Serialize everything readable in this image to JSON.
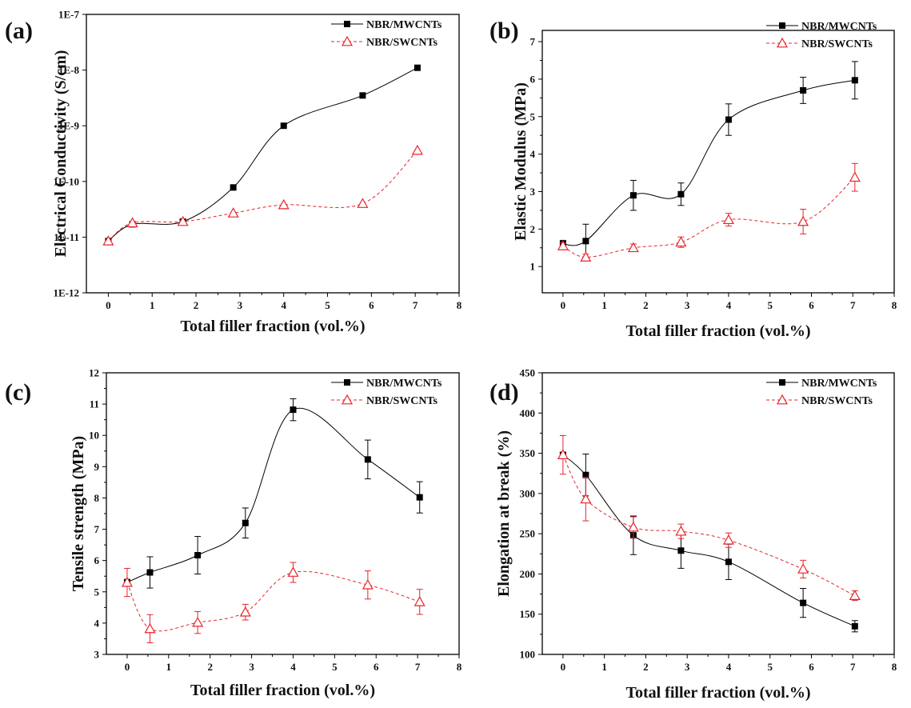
{
  "chart_data": [
    {
      "panel": "(a)",
      "type": "scatter",
      "xlabel": "Total filler fraction (vol.%)",
      "ylabel": "Electrical Conductivity (S/cm)",
      "y_scale": "log",
      "xlim": [
        -0.5,
        8
      ],
      "ylim": [
        1e-12,
        1e-07
      ],
      "x_ticks": [
        "0",
        "1",
        "2",
        "3",
        "4",
        "5",
        "6",
        "7",
        "8"
      ],
      "y_ticks": [
        "1E-12",
        "1E-11",
        "1E-10",
        "1E-9",
        "1E-8",
        "1E-7"
      ],
      "legend": "top-right",
      "series": [
        {
          "name": "NBR/MWCNTs",
          "x": [
            0,
            0.55,
            1.7,
            2.85,
            4.0,
            5.8,
            7.05
          ],
          "y": [
            8.5e-12,
            1.7e-11,
            1.9e-11,
            7.8e-11,
            1e-09,
            3.5e-09,
            1.1e-08
          ],
          "color": "#000000",
          "marker": "square-filled",
          "line": "solid"
        },
        {
          "name": "NBR/SWCNTs",
          "x": [
            0,
            0.55,
            1.7,
            2.85,
            4.0,
            5.8,
            7.05
          ],
          "y": [
            8.5e-12,
            1.8e-11,
            1.9e-11,
            2.7e-11,
            3.8e-11,
            4e-11,
            3.6e-10
          ],
          "color": "#e8242b",
          "marker": "triangle-open",
          "line": "dashed"
        }
      ]
    },
    {
      "panel": "(b)",
      "type": "scatter",
      "xlabel": "Total filler fraction (vol.%)",
      "ylabel": "Elastic Modulus (MPa)",
      "xlim": [
        -0.5,
        8
      ],
      "ylim": [
        0.3,
        7.3
      ],
      "x_ticks": [
        "0",
        "1",
        "2",
        "3",
        "4",
        "5",
        "6",
        "7",
        "8"
      ],
      "y_ticks": [
        "1",
        "2",
        "3",
        "4",
        "5",
        "6",
        "7"
      ],
      "legend": "top-right",
      "series": [
        {
          "name": "NBR/MWCNTs",
          "x": [
            0,
            0.55,
            1.7,
            2.85,
            4.0,
            5.8,
            7.05
          ],
          "y": [
            1.6,
            1.68,
            2.9,
            2.93,
            4.92,
            5.7,
            5.97
          ],
          "err": [
            0.1,
            0.45,
            0.4,
            0.3,
            0.42,
            0.35,
            0.5
          ],
          "color": "#000000",
          "marker": "square-filled",
          "line": "solid"
        },
        {
          "name": "NBR/SWCNTs",
          "x": [
            0,
            0.55,
            1.7,
            2.85,
            4.0,
            5.8,
            7.05
          ],
          "y": [
            1.55,
            1.25,
            1.5,
            1.65,
            2.25,
            2.2,
            3.38
          ],
          "err": [
            0.08,
            0.08,
            0.1,
            0.14,
            0.17,
            0.33,
            0.37
          ],
          "color": "#e8242b",
          "marker": "triangle-open",
          "line": "dashed"
        }
      ]
    },
    {
      "panel": "(c)",
      "type": "scatter",
      "xlabel": "Total filler fraction (vol.%)",
      "ylabel": "Tensile strength (MPa)",
      "xlim": [
        -0.5,
        8
      ],
      "ylim": [
        3,
        12
      ],
      "x_ticks": [
        "0",
        "1",
        "2",
        "3",
        "4",
        "5",
        "6",
        "7",
        "8"
      ],
      "y_ticks": [
        "3",
        "4",
        "5",
        "6",
        "7",
        "8",
        "9",
        "10",
        "11",
        "12"
      ],
      "legend": "top-right",
      "series": [
        {
          "name": "NBR/MWCNTs",
          "x": [
            0,
            0.55,
            1.7,
            2.85,
            4.0,
            5.8,
            7.05
          ],
          "y": [
            5.3,
            5.62,
            6.17,
            7.2,
            10.82,
            9.23,
            8.02
          ],
          "err": [
            0.1,
            0.5,
            0.6,
            0.48,
            0.35,
            0.62,
            0.5
          ],
          "color": "#000000",
          "marker": "square-filled",
          "line": "solid"
        },
        {
          "name": "NBR/SWCNTs",
          "x": [
            0,
            0.55,
            1.7,
            2.85,
            4.0,
            5.8,
            7.05
          ],
          "y": [
            5.3,
            3.82,
            4.02,
            4.35,
            5.62,
            5.22,
            4.68
          ],
          "err": [
            0.45,
            0.45,
            0.35,
            0.25,
            0.32,
            0.45,
            0.4
          ],
          "color": "#e8242b",
          "marker": "triangle-open",
          "line": "dashed"
        }
      ]
    },
    {
      "panel": "(d)",
      "type": "scatter",
      "xlabel": "Total filler fraction (vol.%)",
      "ylabel": "Elongation at break (%)",
      "xlim": [
        -0.5,
        8
      ],
      "ylim": [
        100,
        450
      ],
      "x_ticks": [
        "0",
        "1",
        "2",
        "3",
        "4",
        "5",
        "6",
        "7",
        "8"
      ],
      "y_ticks": [
        "100",
        "150",
        "200",
        "250",
        "300",
        "350",
        "400",
        "450"
      ],
      "legend": "top-right",
      "series": [
        {
          "name": "NBR/MWCNTs",
          "x": [
            0,
            0.55,
            1.7,
            2.85,
            4.0,
            5.8,
            7.05
          ],
          "y": [
            348,
            323,
            248,
            229,
            215,
            164,
            135
          ],
          "err": [
            3,
            26,
            24,
            22,
            22,
            18,
            7
          ],
          "color": "#000000",
          "marker": "square-filled",
          "line": "solid"
        },
        {
          "name": "NBR/SWCNTs",
          "x": [
            0,
            0.55,
            1.7,
            2.85,
            4.0,
            5.8,
            7.05
          ],
          "y": [
            348,
            293,
            258,
            253,
            242,
            206,
            173
          ],
          "err": [
            24,
            27,
            13,
            9,
            9,
            11,
            6
          ],
          "color": "#e8242b",
          "marker": "triangle-open",
          "line": "dashed"
        }
      ]
    }
  ]
}
